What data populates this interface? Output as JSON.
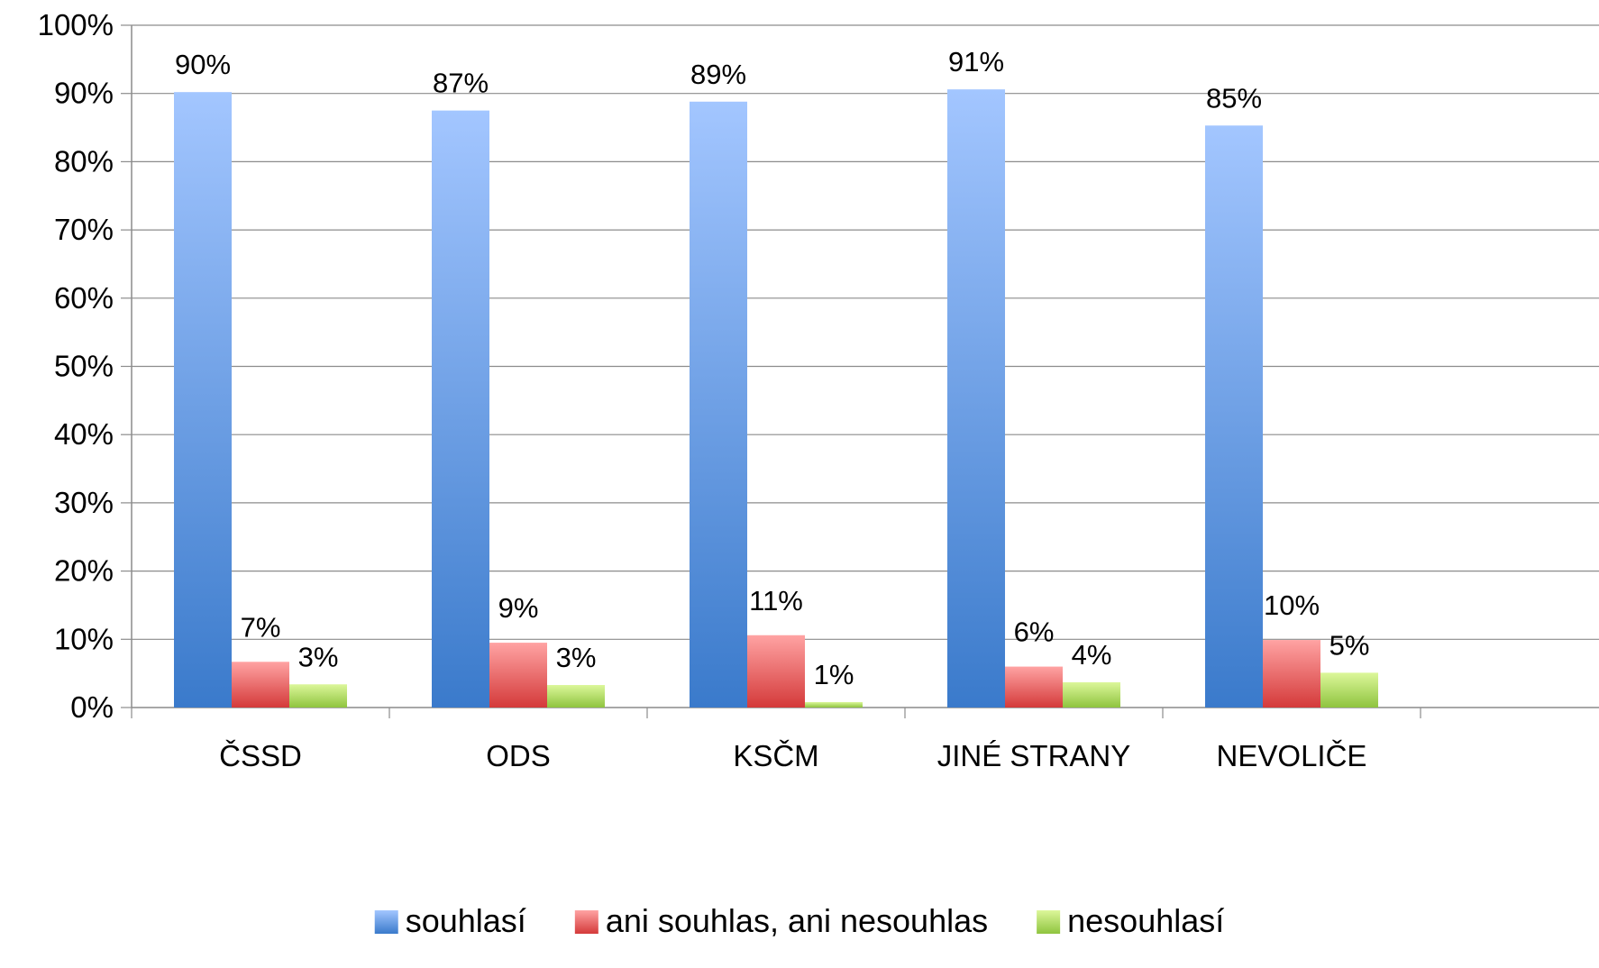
{
  "chart_data": {
    "type": "bar",
    "categories": [
      "ČSSD",
      "ODS",
      "KSČM",
      "JINÉ STRANY",
      "NEVOLIČE"
    ],
    "series": [
      {
        "name": "souhlasí",
        "values": [
          90.2,
          87.5,
          88.8,
          90.6,
          85.3
        ],
        "labels": [
          "90%",
          "87%",
          "89%",
          "91%",
          "85%"
        ],
        "color_top": "#a3c6ff",
        "color_bottom": "#3a7acb"
      },
      {
        "name": "ani souhlas, ani nesouhlas",
        "values": [
          6.7,
          9.5,
          10.6,
          6.0,
          9.9
        ],
        "labels": [
          "7%",
          "9%",
          "11%",
          "6%",
          "10%"
        ],
        "color_top": "#ffa3a3",
        "color_bottom": "#d43a3a"
      },
      {
        "name": "nesouhlasí",
        "values": [
          3.4,
          3.3,
          0.8,
          3.7,
          5.1
        ],
        "labels": [
          "3%",
          "3%",
          "1%",
          "4%",
          "5%"
        ],
        "color_top": "#dcf79a",
        "color_bottom": "#8fc43f"
      }
    ],
    "yticks": [
      "0%",
      "10%",
      "20%",
      "30%",
      "40%",
      "50%",
      "60%",
      "70%",
      "80%",
      "90%",
      "100%"
    ],
    "ylim": [
      0,
      100
    ],
    "grid": true,
    "legend": "bottom",
    "title": "",
    "xlabel": "",
    "ylabel": ""
  }
}
